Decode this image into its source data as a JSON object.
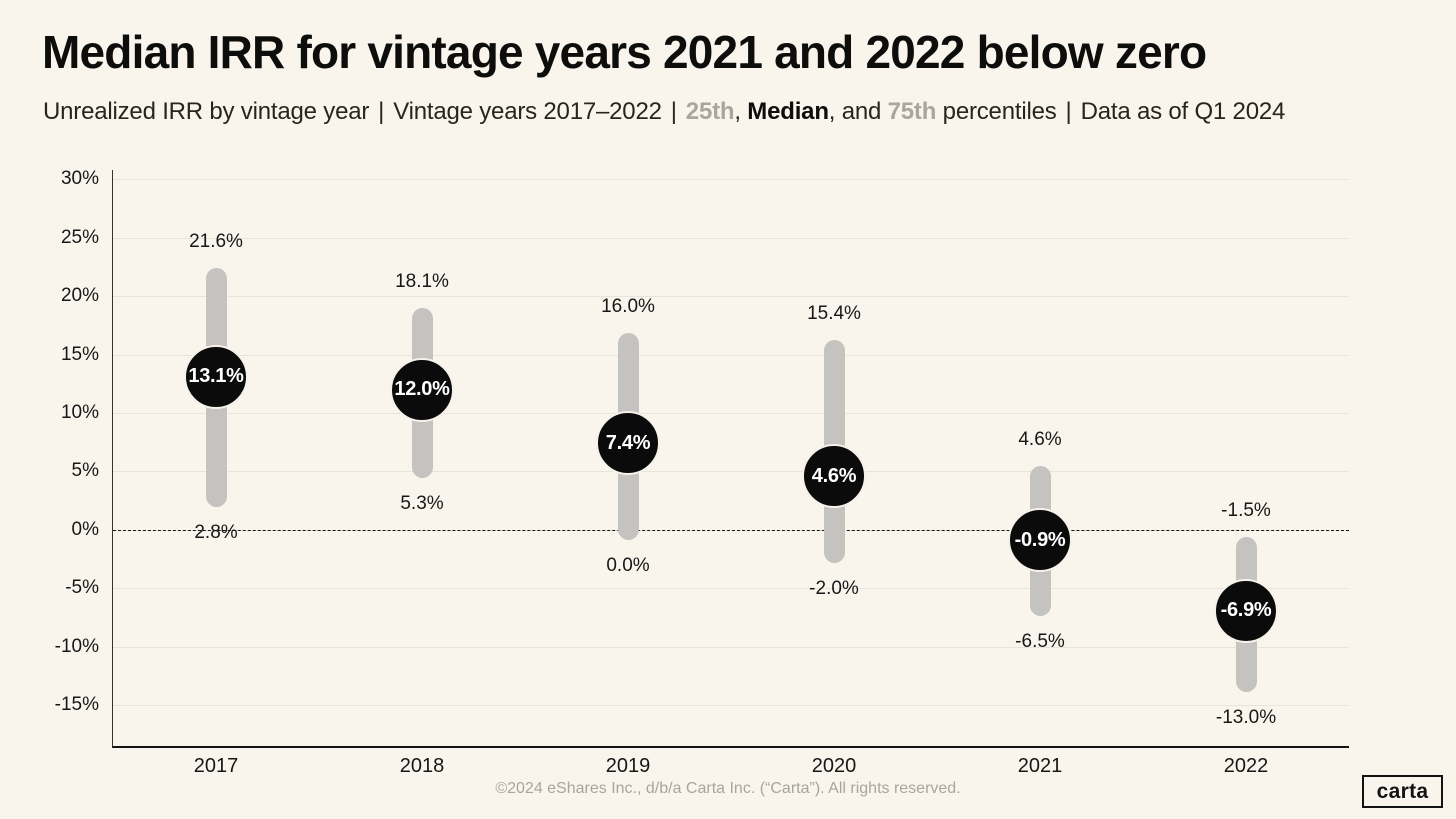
{
  "header": {
    "title": "Median IRR for vintage years 2021 and 2022 below zero",
    "subtitle_segments": [
      {
        "text": "Unrealized IRR by vintage year",
        "style": "normal"
      },
      {
        "text": "|",
        "style": "sep"
      },
      {
        "text": "Vintage years 2017–2022",
        "style": "normal"
      },
      {
        "text": "|",
        "style": "sep"
      },
      {
        "text": "25th",
        "style": "percentile-gray"
      },
      {
        "text": ", ",
        "style": "normal"
      },
      {
        "text": "Median",
        "style": "bold"
      },
      {
        "text": ", and ",
        "style": "normal"
      },
      {
        "text": "75th",
        "style": "percentile-gray"
      },
      {
        "text": " percentiles",
        "style": "normal"
      },
      {
        "text": "|",
        "style": "sep"
      },
      {
        "text": "Data as of Q1 2024",
        "style": "normal"
      }
    ]
  },
  "chart_data": {
    "type": "dumbbell-range",
    "title": "Median IRR for vintage years 2021 and 2022 below zero",
    "subtitle": "Unrealized IRR by vintage year | Vintage years 2017–2022 | 25th, Median, and 75th percentiles | Data as of Q1 2024",
    "categories": [
      "2017",
      "2018",
      "2019",
      "2020",
      "2021",
      "2022"
    ],
    "series": [
      {
        "name": "75th percentile",
        "role": "high",
        "values": [
          21.6,
          18.1,
          16.0,
          15.4,
          4.6,
          -1.5
        ],
        "labels": [
          "21.6%",
          "18.1%",
          "16.0%",
          "15.4%",
          "4.6%",
          "-1.5%"
        ]
      },
      {
        "name": "Median",
        "role": "median",
        "values": [
          13.1,
          12.0,
          7.4,
          4.6,
          -0.9,
          -6.9
        ],
        "labels": [
          "13.1%",
          "12.0%",
          "7.4%",
          "4.6%",
          "-0.9%",
          "-6.9%"
        ]
      },
      {
        "name": "25th percentile",
        "role": "low",
        "values": [
          2.8,
          5.3,
          0.0,
          -2.0,
          -6.5,
          -13.0
        ],
        "labels": [
          "2.8%",
          "5.3%",
          "0.0%",
          "-2.0%",
          "-6.5%",
          "-13.0%"
        ]
      }
    ],
    "xlabel": "",
    "ylabel": "",
    "y_axis": {
      "ticks": [
        {
          "label": "30%",
          "value": 30
        },
        {
          "label": "25%",
          "value": 25
        },
        {
          "label": "20%",
          "value": 20
        },
        {
          "label": "15%",
          "value": 15
        },
        {
          "label": "10%",
          "value": 10
        },
        {
          "label": "5%",
          "value": 5
        },
        {
          "label": "0%",
          "value": 0
        },
        {
          "label": "-5%",
          "value": -5
        },
        {
          "label": "-10%",
          "value": -10
        },
        {
          "label": "-15%",
          "value": -15
        }
      ],
      "range": [
        -18.5,
        30.8
      ]
    },
    "zero_line": {
      "value": 0,
      "style": "dashed"
    },
    "grid": true,
    "legend_position": "none",
    "colors": {
      "background": "#f9f5ed",
      "range_bar": "#c5c3c0",
      "median_dot": "#0b0b0b",
      "median_dot_text": "#ffffff",
      "label_text": "#171717",
      "gridline": "#e7e4db",
      "subtitle_gray": "#a9a69f"
    }
  },
  "footer": {
    "text": "©2024 eShares Inc., d/b/a Carta Inc. (“Carta”). All rights reserved.",
    "logo_text": "carta"
  }
}
